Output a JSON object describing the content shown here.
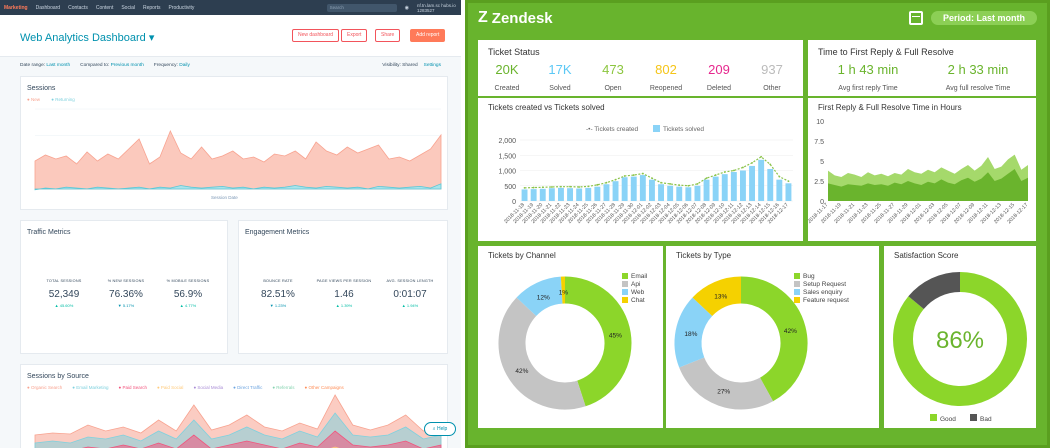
{
  "hubspot": {
    "nav": {
      "logo": "Marketing",
      "items": [
        "Dashboard",
        "Contacts",
        "Content",
        "Social",
        "Reports",
        "Productivity"
      ],
      "search_placeholder": "Search",
      "account": "nf.tn.lam.sc hubs.io 1283527"
    },
    "header": {
      "title": "Web Analytics Dashboard",
      "buttons": [
        "New dashboard",
        "Export",
        "Share",
        "Add report"
      ]
    },
    "filters": {
      "date_range_label": "Date range:",
      "date_range_value": "Last month",
      "compared_label": "Compared to:",
      "compared_value": "Previous month",
      "frequency_label": "Frequency:",
      "frequency_value": "Daily",
      "visibility": "Visibility: Shared",
      "settings": "Settings"
    },
    "sessions_card": {
      "title": "Sessions",
      "legend": [
        "New",
        "Returning"
      ],
      "xlabel": "Session Date"
    },
    "traffic_card": {
      "title": "Traffic Metrics",
      "metrics": [
        {
          "label": "TOTAL SESSIONS",
          "value": "52,349",
          "change": "▲ 45.60%"
        },
        {
          "label": "% NEW SESSIONS",
          "value": "76.36%",
          "change": "▼ 5.17%"
        },
        {
          "label": "% MOBILE SESSIONS",
          "value": "56.9%",
          "change": "▲ 4.77%"
        }
      ]
    },
    "engagement_card": {
      "title": "Engagement Metrics",
      "metrics": [
        {
          "label": "BOUNCE RATE",
          "value": "82.51%",
          "change": "▼ 1.23%"
        },
        {
          "label": "PAGE VIEWS PER SESSION",
          "value": "1.46",
          "change": "▲ 1.39%"
        },
        {
          "label": "AVG. SESSION LENGTH",
          "value": "0:01:07",
          "change": "▲ 1.94%"
        }
      ]
    },
    "source_card": {
      "title": "Sessions by Source",
      "legend": [
        "Organic Search",
        "Email Marketing",
        "Paid Search",
        "Paid Social",
        "Social Media",
        "Direct Traffic",
        "Referrals",
        "Other Campaigns"
      ]
    },
    "help": "Help",
    "colors": {
      "new": "#f8a390",
      "returning": "#7fd1de"
    }
  },
  "zendesk": {
    "brand": "Zendesk",
    "period": "Period: Last month",
    "ticket_status": {
      "title": "Ticket Status",
      "stats": [
        {
          "value": "20K",
          "label": "Created",
          "color": "#6ab42d"
        },
        {
          "value": "17K",
          "label": "Solved",
          "color": "#5bc8f5"
        },
        {
          "value": "473",
          "label": "Open",
          "color": "#8cc63f"
        },
        {
          "value": "802",
          "label": "Reopened",
          "color": "#f5c518"
        },
        {
          "value": "209",
          "label": "Deleted",
          "color": "#e6288e"
        },
        {
          "value": "937",
          "label": "Other",
          "color": "#bbbbbb"
        }
      ]
    },
    "reply_time": {
      "title": "Time to First Reply & Full Resolve",
      "stats": [
        {
          "value": "1 h 43 min",
          "label": "Avg first reply Time"
        },
        {
          "value": "2 h 33 min",
          "label": "Avg full resolve Time"
        }
      ]
    },
    "created_vs_solved": {
      "title": "Tickets created vs Tickets solved",
      "legend": [
        "Tickets created",
        "Tickets solved"
      ],
      "yticks": [
        "2,000",
        "1,500",
        "1,000",
        "500",
        "0"
      ]
    },
    "reply_hours": {
      "title": "First Reply & Full Resolve Time in Hours",
      "yticks": [
        "10",
        "7.5",
        "5",
        "2.5",
        "0"
      ]
    },
    "by_channel": {
      "title": "Tickets by Channel",
      "legend": [
        "Email",
        "Api",
        "Web",
        "Chat"
      ],
      "colors": [
        "#8cd62a",
        "#c4c4c4",
        "#8ad3f7",
        "#f5d100"
      ],
      "values": [
        45,
        42,
        12,
        1
      ],
      "labels": [
        "45%",
        "42%",
        "12%",
        "1%"
      ]
    },
    "by_type": {
      "title": "Tickets by Type",
      "legend": [
        "Bug",
        "Setup Request",
        "Sales enquiry",
        "Feature request"
      ],
      "colors": [
        "#8cd62a",
        "#c4c4c4",
        "#8ad3f7",
        "#f5d100"
      ],
      "values": [
        42,
        27,
        18,
        13
      ],
      "labels": [
        "42%",
        "27%",
        "18%",
        "13%"
      ]
    },
    "satisfaction": {
      "title": "Satisfaction Score",
      "value": 86,
      "label": "86%",
      "legend": [
        "Good",
        "Bad"
      ],
      "colors": [
        "#8cd62a",
        "#555555"
      ]
    }
  },
  "chart_data": [
    {
      "type": "line",
      "title": "Tickets created vs Tickets solved",
      "x": [
        "2018-11-18",
        "2018-11-19",
        "2018-11-20",
        "2018-11-21",
        "2018-11-22",
        "2018-11-23",
        "2018-11-24",
        "2018-11-25",
        "2018-11-26",
        "2018-11-27",
        "2018-11-28",
        "2018-11-29",
        "2018-11-30",
        "2018-12-01",
        "2018-12-02",
        "2018-12-03",
        "2018-12-04",
        "2018-12-05",
        "2018-12-06",
        "2018-12-07",
        "2018-12-08",
        "2018-12-09",
        "2018-12-10",
        "2018-12-11",
        "2018-12-12",
        "2018-12-13",
        "2018-12-14",
        "2018-12-15",
        "2018-12-16",
        "2018-12-17"
      ],
      "series": [
        {
          "name": "Tickets created",
          "values": [
            430,
            440,
            450,
            460,
            470,
            470,
            460,
            480,
            530,
            600,
            700,
            820,
            850,
            900,
            750,
            600,
            560,
            520,
            500,
            560,
            750,
            850,
            950,
            1000,
            1100,
            1250,
            1450,
            1200,
            800,
            650
          ]
        },
        {
          "name": "Tickets solved",
          "values": [
            380,
            390,
            400,
            420,
            430,
            420,
            410,
            430,
            470,
            550,
            650,
            780,
            800,
            850,
            700,
            550,
            500,
            470,
            450,
            500,
            700,
            800,
            880,
            950,
            1000,
            1150,
            1350,
            1050,
            700,
            580
          ]
        }
      ],
      "ylim": [
        0,
        2000
      ]
    },
    {
      "type": "area",
      "title": "First Reply & Full Resolve Time in Hours",
      "x": [
        "2018-11-17",
        "2018-11-18",
        "2018-11-19",
        "2018-11-20",
        "2018-11-21",
        "2018-11-22",
        "2018-11-23",
        "2018-11-24",
        "2018-11-25",
        "2018-11-26",
        "2018-11-27",
        "2018-11-28",
        "2018-11-29",
        "2018-11-30",
        "2018-12-01",
        "2018-12-02",
        "2018-12-03",
        "2018-12-04",
        "2018-12-05",
        "2018-12-06",
        "2018-12-07",
        "2018-12-08",
        "2018-12-09",
        "2018-12-10",
        "2018-12-11",
        "2018-12-12",
        "2018-12-13",
        "2018-12-14",
        "2018-12-15",
        "2018-12-16",
        "2018-12-17"
      ],
      "series": [
        {
          "values": [
            3.8,
            3.2,
            3.0,
            3.5,
            3.3,
            3.0,
            3.6,
            3.2,
            3.4,
            3.1,
            3.5,
            3.3,
            4.0,
            3.6,
            3.4,
            3.9,
            3.6,
            4.2,
            3.8,
            3.4,
            4.0,
            4.5,
            3.8,
            4.4,
            5.5,
            4.0,
            4.3,
            5.2,
            5.8,
            3.9,
            4.5
          ]
        },
        {
          "values": [
            2.2,
            2.0,
            1.8,
            2.1,
            2.0,
            1.9,
            2.2,
            2.0,
            2.1,
            1.9,
            2.3,
            2.1,
            2.5,
            2.2,
            2.0,
            2.4,
            2.2,
            2.7,
            2.3,
            2.1,
            2.6,
            2.9,
            2.4,
            2.8,
            3.6,
            2.5,
            2.8,
            3.4,
            4.0,
            2.5,
            2.9
          ]
        }
      ],
      "ylim": [
        0,
        10
      ]
    },
    {
      "type": "pie",
      "title": "Tickets by Channel",
      "categories": [
        "Email",
        "Api",
        "Web",
        "Chat"
      ],
      "values": [
        45,
        42,
        12,
        1
      ]
    },
    {
      "type": "pie",
      "title": "Tickets by Type",
      "categories": [
        "Bug",
        "Setup Request",
        "Sales enquiry",
        "Feature request"
      ],
      "values": [
        42,
        27,
        18,
        13
      ]
    },
    {
      "type": "pie",
      "title": "Satisfaction Score",
      "categories": [
        "Good",
        "Bad"
      ],
      "values": [
        86,
        14
      ]
    }
  ]
}
